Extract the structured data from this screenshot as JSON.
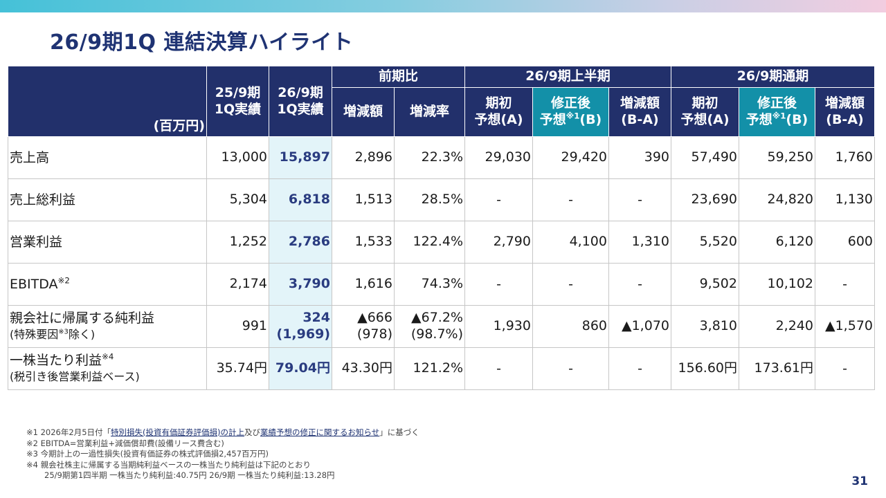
{
  "header": {
    "title": "26/9期1Q 連結決算ハイライト"
  },
  "table": {
    "unit": "(百万円)",
    "cols": {
      "prev_q1": [
        "25/9期",
        "1Q実績"
      ],
      "cur_q1": [
        "26/9期",
        "1Q実績"
      ],
      "yoy_group": "前期比",
      "yoy_diff": "増減額",
      "yoy_rate": "増減率",
      "half_group": "26/9期上半期",
      "full_group": "26/9期通期",
      "initial": [
        "期初",
        "予想(A)"
      ],
      "revised_top": "修正後",
      "revised_bottom": "予想",
      "revised_sup": "※1",
      "revised_tail": "(B)",
      "diff": [
        "増減額",
        "(B-A)"
      ]
    },
    "rows": [
      {
        "label": "売上高",
        "prev": "13,000",
        "cur": "15,897",
        "yoy_diff": "2,896",
        "yoy_rate": "22.3%",
        "h_a": "29,030",
        "h_b": "29,420",
        "h_d": "390",
        "f_a": "57,490",
        "f_b": "59,250",
        "f_d": "1,760"
      },
      {
        "label": "売上総利益",
        "prev": "5,304",
        "cur": "6,818",
        "yoy_diff": "1,513",
        "yoy_rate": "28.5%",
        "h_a": "-",
        "h_b": "-",
        "h_d": "-",
        "f_a": "23,690",
        "f_b": "24,820",
        "f_d": "1,130"
      },
      {
        "label": "営業利益",
        "prev": "1,252",
        "cur": "2,786",
        "yoy_diff": "1,533",
        "yoy_rate": "122.4%",
        "h_a": "2,790",
        "h_b": "4,100",
        "h_d": "1,310",
        "f_a": "5,520",
        "f_b": "6,120",
        "f_d": "600"
      },
      {
        "label": "EBITDA",
        "label_sup": "※2",
        "prev": "2,174",
        "cur": "3,790",
        "yoy_diff": "1,616",
        "yoy_rate": "74.3%",
        "h_a": "-",
        "h_b": "-",
        "h_d": "-",
        "f_a": "9,502",
        "f_b": "10,102",
        "f_d": "-"
      },
      {
        "label": "親会社に帰属する純利益",
        "sub_pre": "(特殊要因",
        "sub_sup": "※3",
        "sub_post": "除く)",
        "prev": "991",
        "cur": "324",
        "cur_sub": "(1,969)",
        "yoy_diff": "▲666",
        "yoy_diff_sub": "(978)",
        "yoy_rate": "▲67.2%",
        "yoy_rate_sub": "(98.7%)",
        "h_a": "1,930",
        "h_b": "860",
        "h_d": "▲1,070",
        "f_a": "3,810",
        "f_b": "2,240",
        "f_d": "▲1,570"
      },
      {
        "label": "一株当たり利益",
        "label_sup": "※4",
        "sub": "(税引き後営業利益ベース)",
        "prev": "35.74円",
        "cur": "79.04円",
        "yoy_diff": "43.30円",
        "yoy_rate": "121.2%",
        "h_a": "-",
        "h_b": "-",
        "h_d": "-",
        "f_a": "156.60円",
        "f_b": "173.61円",
        "f_d": "-"
      }
    ]
  },
  "notes": {
    "n1_pre": "※1 2026年2月5日付「",
    "n1_link1": "特別損失(投資有価証券評価損)の計上",
    "n1_mid": "及び",
    "n1_link2": "業績予想の修正に関するお知らせ",
    "n1_post": "」に基づく",
    "n2": "※2 EBITDA=営業利益+減価償却費(設備リース費含む)",
    "n3": "※3 今期計上の一過性損失(投資有価証券の株式評価損2,457百万円)",
    "n4": "※4 親会社株主に帰属する当期純利益ベースの一株当たり純利益は下記のとおり",
    "n4_detail": "25/9期第1四半期 一株当たり純利益:40.75円  26/9期 一株当たり純利益:13.28円"
  },
  "page_number": "31"
}
